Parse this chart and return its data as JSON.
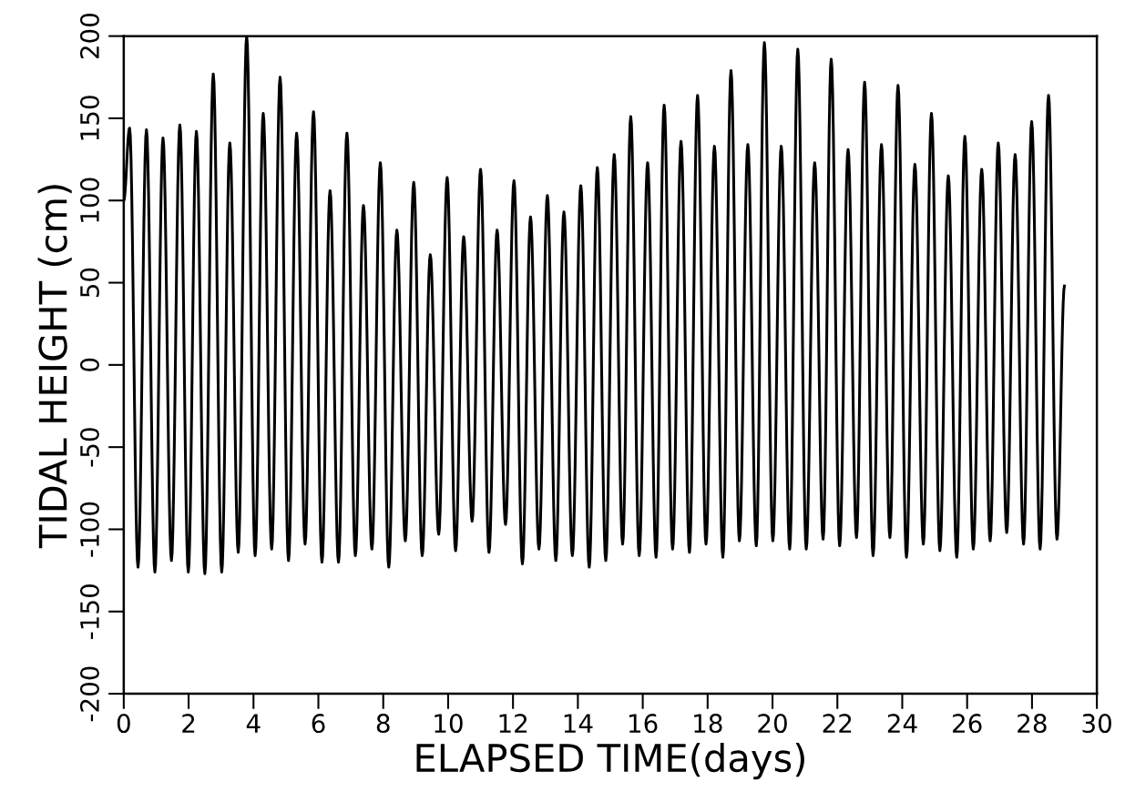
{
  "chart_data": {
    "type": "line",
    "xlabel": "ELAPSED TIME(days)",
    "ylabel": "TIDAL HEIGHT (cm)",
    "xlim": [
      0,
      30
    ],
    "xticks": [
      0,
      2,
      4,
      6,
      8,
      10,
      12,
      14,
      16,
      18,
      20,
      22,
      24,
      26,
      28,
      30
    ],
    "ylim": [
      -200,
      200
    ],
    "yticks": [
      -200,
      -150,
      -100,
      -50,
      0,
      50,
      100,
      150,
      200
    ],
    "grid": false,
    "legend": false,
    "marker": "none",
    "line_style": "solid",
    "series": [
      {
        "color": "#000000",
        "x": [
          0,
          0.18,
          0.44,
          0.7,
          0.96,
          1.21,
          1.47,
          1.73,
          1.99,
          2.24,
          2.5,
          2.76,
          3.02,
          3.27,
          3.53,
          3.79,
          4.05,
          4.3,
          4.56,
          4.82,
          5.08,
          5.33,
          5.59,
          5.85,
          6.11,
          6.36,
          6.62,
          6.88,
          7.14,
          7.39,
          7.65,
          7.91,
          8.17,
          8.42,
          8.68,
          8.94,
          9.2,
          9.45,
          9.71,
          9.97,
          10.23,
          10.48,
          10.74,
          11.0,
          11.26,
          11.51,
          11.77,
          12.03,
          12.29,
          12.54,
          12.8,
          13.06,
          13.32,
          13.57,
          13.83,
          14.09,
          14.35,
          14.6,
          14.86,
          15.12,
          15.38,
          15.63,
          15.89,
          16.15,
          16.41,
          16.66,
          16.92,
          17.18,
          17.44,
          17.69,
          17.95,
          18.21,
          18.47,
          18.72,
          18.98,
          19.24,
          19.5,
          19.75,
          20.01,
          20.27,
          20.53,
          20.78,
          21.04,
          21.3,
          21.56,
          21.81,
          22.07,
          22.33,
          22.59,
          22.84,
          23.1,
          23.36,
          23.62,
          23.87,
          24.13,
          24.39,
          24.65,
          24.9,
          25.16,
          25.42,
          25.68,
          25.93,
          26.19,
          26.45,
          26.71,
          26.96,
          27.22,
          27.48,
          27.74,
          27.99,
          28.25,
          28.51,
          28.77,
          29.0
        ],
        "values": [
          100,
          144,
          -123,
          143,
          -126,
          138,
          -119,
          146,
          -126,
          142,
          -127,
          177,
          -126,
          135,
          -114,
          200,
          -116,
          153,
          -112,
          175,
          -119,
          141,
          -109,
          154,
          -120,
          106,
          -120,
          141,
          -116,
          97,
          -112,
          123,
          -123,
          82,
          -107,
          111,
          -116,
          67,
          -103,
          114,
          -113,
          78,
          -95,
          119,
          -114,
          82,
          -97,
          112,
          -121,
          90,
          -112,
          103,
          -119,
          93,
          -116,
          109,
          -123,
          120,
          -119,
          128,
          -109,
          151,
          -116,
          123,
          -117,
          158,
          -112,
          136,
          -114,
          164,
          -109,
          133,
          -117,
          179,
          -107,
          134,
          -110,
          196,
          -107,
          133,
          -112,
          192,
          -112,
          123,
          -106,
          186,
          -110,
          131,
          -105,
          172,
          -116,
          134,
          -105,
          170,
          -117,
          122,
          -109,
          153,
          -113,
          115,
          -117,
          139,
          -112,
          119,
          -107,
          135,
          -102,
          128,
          -109,
          148,
          -112,
          164,
          -106,
          48
        ]
      }
    ]
  }
}
